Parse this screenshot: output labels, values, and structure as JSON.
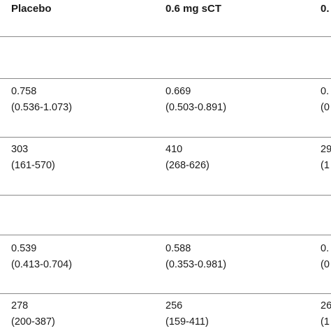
{
  "header": {
    "col1": "Placebo",
    "col2": "0.6 mg sCT",
    "col3": "0."
  },
  "rows": [
    {
      "col1": [
        "0.758",
        "(0.536-1.073)"
      ],
      "col2": [
        "0.669",
        "(0.503-0.891)"
      ],
      "col3": [
        "0.",
        "(0"
      ]
    },
    {
      "col1": [
        "303",
        "(161-570)"
      ],
      "col2": [
        "410",
        "(268-626)"
      ],
      "col3": [
        "29",
        "(1"
      ]
    },
    {
      "col1": [
        "0.539",
        "(0.413-0.704)"
      ],
      "col2": [
        "0.588",
        "(0.353-0.981)"
      ],
      "col3": [
        "0.",
        "(0"
      ]
    },
    {
      "col1": [
        "278",
        "(200-387)"
      ],
      "col2": [
        "256",
        "(159-411)"
      ],
      "col3": [
        "26",
        "(1"
      ]
    }
  ]
}
